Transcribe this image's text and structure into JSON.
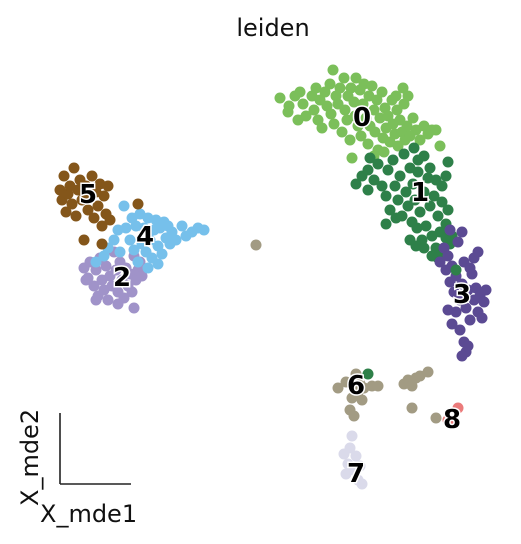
{
  "chart_data": {
    "type": "scatter",
    "title": "leiden",
    "xlabel": "X_mde1",
    "ylabel": "X_mde2",
    "axis_style": "arrow-corner",
    "grid": false,
    "legend": "on-data",
    "clusters": [
      {
        "label": "0",
        "color": "#7BBF5A",
        "center": [
          362,
          118
        ],
        "points": [
          [
            280,
            98
          ],
          [
            289,
            106
          ],
          [
            295,
            96
          ],
          [
            300,
            92
          ],
          [
            303,
            104
          ],
          [
            306,
            116
          ],
          [
            312,
            96
          ],
          [
            314,
            110
          ],
          [
            316,
            88
          ],
          [
            318,
            120
          ],
          [
            320,
            100
          ],
          [
            322,
            128
          ],
          [
            325,
            92
          ],
          [
            327,
            106
          ],
          [
            330,
            84
          ],
          [
            331,
            114
          ],
          [
            333,
            70
          ],
          [
            334,
            124
          ],
          [
            336,
            96
          ],
          [
            338,
            104
          ],
          [
            340,
            88
          ],
          [
            342,
            132
          ],
          [
            344,
            78
          ],
          [
            345,
            110
          ],
          [
            347,
            120
          ],
          [
            348,
            96
          ],
          [
            350,
            140
          ],
          [
            351,
            88
          ],
          [
            352,
            158
          ],
          [
            354,
            102
          ],
          [
            355,
            116
          ],
          [
            356,
            78
          ],
          [
            358,
            126
          ],
          [
            360,
            90
          ],
          [
            361,
            136
          ],
          [
            363,
            104
          ],
          [
            364,
            84
          ],
          [
            366,
            118
          ],
          [
            368,
            144
          ],
          [
            369,
            96
          ],
          [
            370,
            126
          ],
          [
            372,
            86
          ],
          [
            374,
            110
          ],
          [
            375,
            132
          ],
          [
            377,
            100
          ],
          [
            378,
            150
          ],
          [
            380,
            118
          ],
          [
            382,
            92
          ],
          [
            383,
            138
          ],
          [
            385,
            108
          ],
          [
            386,
            128
          ],
          [
            388,
            116
          ],
          [
            390,
            142
          ],
          [
            392,
            100
          ],
          [
            393,
            124
          ],
          [
            395,
            134
          ],
          [
            397,
            110
          ],
          [
            398,
            146
          ],
          [
            400,
            120
          ],
          [
            402,
            132
          ],
          [
            404,
            104
          ],
          [
            405,
            140
          ],
          [
            407,
            126
          ],
          [
            410,
            136
          ],
          [
            413,
            118
          ],
          [
            416,
            130
          ],
          [
            420,
            140
          ],
          [
            424,
            126
          ],
          [
            428,
            134
          ],
          [
            432,
            130
          ],
          [
            436,
            130
          ],
          [
            440,
            146
          ],
          [
            408,
            96
          ],
          [
            403,
            88
          ],
          [
            396,
            96
          ],
          [
            288,
            112
          ],
          [
            298,
            120
          ],
          [
            384,
            152
          ],
          [
            374,
            156
          ]
        ]
      },
      {
        "label": "1",
        "color": "#2E8049",
        "center": [
          420,
          193
        ],
        "points": [
          [
            356,
            184
          ],
          [
            362,
            176
          ],
          [
            368,
            170
          ],
          [
            370,
            158
          ],
          [
            374,
            180
          ],
          [
            378,
            164
          ],
          [
            382,
            186
          ],
          [
            386,
            196
          ],
          [
            388,
            170
          ],
          [
            390,
            210
          ],
          [
            393,
            160
          ],
          [
            395,
            186
          ],
          [
            398,
            200
          ],
          [
            400,
            176
          ],
          [
            402,
            216
          ],
          [
            404,
            154
          ],
          [
            406,
            192
          ],
          [
            408,
            206
          ],
          [
            410,
            168
          ],
          [
            412,
            222
          ],
          [
            413,
            184
          ],
          [
            415,
            200
          ],
          [
            417,
            228
          ],
          [
            418,
            172
          ],
          [
            420,
            212
          ],
          [
            422,
            240
          ],
          [
            424,
            192
          ],
          [
            426,
            226
          ],
          [
            428,
            178
          ],
          [
            430,
            206
          ],
          [
            432,
            236
          ],
          [
            434,
            196
          ],
          [
            436,
            248
          ],
          [
            438,
            216
          ],
          [
            440,
            232
          ],
          [
            442,
            202
          ],
          [
            444,
            252
          ],
          [
            446,
            224
          ],
          [
            448,
            210
          ],
          [
            450,
            244
          ],
          [
            452,
            236
          ],
          [
            448,
            162
          ],
          [
            446,
            176
          ],
          [
            442,
            186
          ],
          [
            436,
            180
          ],
          [
            430,
            168
          ],
          [
            424,
            156
          ],
          [
            418,
            160
          ],
          [
            414,
            148
          ],
          [
            410,
            240
          ],
          [
            416,
            246
          ],
          [
            424,
            248
          ],
          [
            432,
            256
          ],
          [
            438,
            258
          ],
          [
            446,
            238
          ],
          [
            368,
            190
          ],
          [
            386,
            224
          ],
          [
            396,
            218
          ]
        ]
      },
      {
        "label": "2",
        "color": "#A093C9",
        "center": [
          122,
          278
        ],
        "points": [
          [
            84,
            268
          ],
          [
            88,
            278
          ],
          [
            90,
            262
          ],
          [
            94,
            286
          ],
          [
            96,
            270
          ],
          [
            98,
            296
          ],
          [
            100,
            258
          ],
          [
            102,
            280
          ],
          [
            104,
            290
          ],
          [
            106,
            266
          ],
          [
            108,
            300
          ],
          [
            110,
            276
          ],
          [
            112,
            286
          ],
          [
            114,
            252
          ],
          [
            116,
            270
          ],
          [
            118,
            292
          ],
          [
            120,
            262
          ],
          [
            122,
            280
          ],
          [
            124,
            298
          ],
          [
            126,
            268
          ],
          [
            128,
            286
          ],
          [
            130,
            274
          ],
          [
            132,
            292
          ],
          [
            134,
            256
          ],
          [
            136,
            280
          ],
          [
            138,
            270
          ],
          [
            140,
            262
          ],
          [
            142,
            276
          ],
          [
            134,
            308
          ],
          [
            96,
            300
          ],
          [
            86,
            280
          ],
          [
            118,
            304
          ]
        ]
      },
      {
        "label": "3",
        "color": "#5B4A93",
        "center": [
          462,
          295
        ],
        "points": [
          [
            440,
            262
          ],
          [
            444,
            248
          ],
          [
            446,
            270
          ],
          [
            448,
            256
          ],
          [
            450,
            282
          ],
          [
            452,
            266
          ],
          [
            454,
            292
          ],
          [
            456,
            276
          ],
          [
            458,
            242
          ],
          [
            460,
            300
          ],
          [
            462,
            284
          ],
          [
            464,
            262
          ],
          [
            466,
            308
          ],
          [
            468,
            290
          ],
          [
            470,
            320
          ],
          [
            472,
            274
          ],
          [
            474,
            300
          ],
          [
            476,
            288
          ],
          [
            478,
            312
          ],
          [
            480,
            296
          ],
          [
            482,
            318
          ],
          [
            484,
            302
          ],
          [
            486,
            290
          ],
          [
            460,
            330
          ],
          [
            464,
            342
          ],
          [
            466,
            352
          ],
          [
            462,
            356
          ],
          [
            468,
            346
          ],
          [
            470,
            268
          ],
          [
            456,
            312
          ],
          [
            448,
            310
          ],
          [
            474,
            258
          ],
          [
            462,
            232
          ],
          [
            478,
            252
          ],
          [
            452,
            324
          ]
        ]
      },
      {
        "label": "4",
        "color": "#76C0EB",
        "center": [
          145,
          237
        ],
        "points": [
          [
            96,
            262
          ],
          [
            104,
            256
          ],
          [
            108,
            248
          ],
          [
            114,
            240
          ],
          [
            118,
            230
          ],
          [
            120,
            252
          ],
          [
            124,
            206
          ],
          [
            126,
            228
          ],
          [
            130,
            240
          ],
          [
            132,
            218
          ],
          [
            134,
            250
          ],
          [
            136,
            226
          ],
          [
            138,
            262
          ],
          [
            140,
            214
          ],
          [
            142,
            244
          ],
          [
            144,
            228
          ],
          [
            146,
            252
          ],
          [
            148,
            218
          ],
          [
            150,
            240
          ],
          [
            152,
            258
          ],
          [
            154,
            230
          ],
          [
            156,
            220
          ],
          [
            158,
            246
          ],
          [
            160,
            228
          ],
          [
            162,
            254
          ],
          [
            164,
            222
          ],
          [
            166,
            238
          ],
          [
            168,
            226
          ],
          [
            170,
            244
          ],
          [
            172,
            232
          ],
          [
            176,
            240
          ],
          [
            182,
            226
          ],
          [
            186,
            236
          ],
          [
            192,
            232
          ],
          [
            198,
            228
          ],
          [
            204,
            230
          ],
          [
            148,
            268
          ],
          [
            158,
            264
          ]
        ]
      },
      {
        "label": "5",
        "color": "#84561A",
        "center": [
          88,
          195
        ],
        "points": [
          [
            60,
            190
          ],
          [
            62,
            200
          ],
          [
            64,
            176
          ],
          [
            66,
            212
          ],
          [
            68,
            194
          ],
          [
            70,
            186
          ],
          [
            72,
            204
          ],
          [
            74,
            168
          ],
          [
            76,
            216
          ],
          [
            78,
            190
          ],
          [
            80,
            180
          ],
          [
            82,
            200
          ],
          [
            84,
            240
          ],
          [
            86,
            186
          ],
          [
            88,
            210
          ],
          [
            90,
            196
          ],
          [
            92,
            176
          ],
          [
            94,
            218
          ],
          [
            96,
            192
          ],
          [
            98,
            206
          ],
          [
            100,
            184
          ],
          [
            102,
            226
          ],
          [
            104,
            196
          ],
          [
            106,
            214
          ],
          [
            108,
            186
          ],
          [
            110,
            220
          ],
          [
            138,
            204
          ],
          [
            102,
            244
          ]
        ]
      },
      {
        "label": "6",
        "color": "#A29B83",
        "center": [
          356,
          386
        ],
        "points": [
          [
            256,
            245
          ],
          [
            338,
            388
          ],
          [
            346,
            382
          ],
          [
            350,
            410
          ],
          [
            352,
            398
          ],
          [
            354,
            416
          ],
          [
            356,
            374
          ],
          [
            358,
            392
          ],
          [
            360,
            384
          ],
          [
            362,
            400
          ],
          [
            364,
            388
          ],
          [
            372,
            386
          ],
          [
            378,
            386
          ],
          [
            404,
            384
          ],
          [
            408,
            380
          ],
          [
            412,
            386
          ],
          [
            416,
            378
          ],
          [
            420,
            376
          ],
          [
            428,
            372
          ],
          [
            412,
            408
          ],
          [
            436,
            418
          ]
        ]
      },
      {
        "label": "7",
        "color": "#DADAEA",
        "center": [
          356,
          474
        ],
        "points": [
          [
            344,
            454
          ],
          [
            348,
            464
          ],
          [
            350,
            448
          ],
          [
            352,
            436
          ],
          [
            354,
            470
          ],
          [
            356,
            456
          ],
          [
            358,
            480
          ],
          [
            360,
            466
          ],
          [
            362,
            484
          ],
          [
            346,
            474
          ]
        ]
      },
      {
        "label": "8",
        "color": "#EB7B7B",
        "center": [
          452,
          420
        ],
        "points": [
          [
            458,
            408
          ],
          [
            452,
            424
          ],
          [
            448,
            420
          ]
        ]
      }
    ],
    "stray_points": [
      [
        368,
        374,
        "#2E8049"
      ],
      [
        456,
        270,
        "#2E8049"
      ],
      [
        450,
        230,
        "#5B4A93"
      ]
    ]
  }
}
